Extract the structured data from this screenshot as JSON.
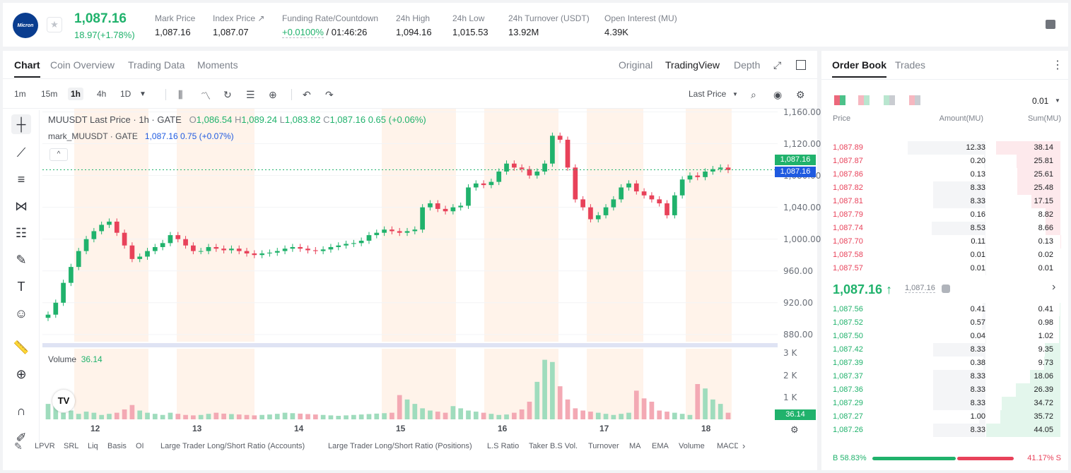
{
  "header": {
    "logo_text": "Micron",
    "last_price": "1,087.16",
    "change": "18.97(+1.78%)",
    "stats": [
      {
        "label": "Mark Price",
        "value": "1,087.16"
      },
      {
        "label": "Index Price ↗",
        "value": "1,087.07"
      },
      {
        "label": "Funding Rate/Countdown",
        "value_a": "+0.0100%",
        "value_b": "/ 01:46:26"
      },
      {
        "label": "24h High",
        "value": "1,094.16"
      },
      {
        "label": "24h Low",
        "value": "1,015.53"
      },
      {
        "label": "24h Turnover (USDT)",
        "value": "13.92M"
      },
      {
        "label": "Open Interest (MU)",
        "value": "4.39K"
      }
    ]
  },
  "chart_tabs": [
    "Chart",
    "Coin Overview",
    "Trading Data",
    "Moments"
  ],
  "view_tabs": [
    "Original",
    "TradingView",
    "Depth"
  ],
  "timeframes": [
    "1m",
    "15m",
    "1h",
    "4h",
    "1D"
  ],
  "price_source": "Last Price",
  "legend": {
    "symbol": "MUUSDT Last Price · 1h · GATE",
    "o_label": "O",
    "o": "1,086.54",
    "h_label": "H",
    "h": "1,089.24",
    "l_label": "L",
    "l": "1,083.82",
    "c_label": "C",
    "c": "1,087.16",
    "chg": "0.65 (+0.06%)",
    "mark_symbol": "mark_MUUSDT · GATE",
    "mark_val": "1,087.16  0.75 (+0.07%)",
    "volume_label": "Volume",
    "volume_val": "36.14"
  },
  "price_tags": {
    "last": "1,087.16",
    "mark": "1,087.16",
    "volume": "36.14"
  },
  "colors": {
    "up": "#20b26c",
    "down": "#e8425a",
    "mark": "#1f5ae0"
  },
  "chart_data": {
    "type": "candlestick",
    "title": "MUUSDT Last Price · 1h · GATE",
    "y_ticks": [
      "1,160.00",
      "1,120.00",
      "1,080.00",
      "1,040.00",
      "1,000.00",
      "960.00",
      "920.00",
      "880.00"
    ],
    "y_tick_values": [
      1160,
      1120,
      1080,
      1040,
      1000,
      960,
      920,
      880
    ],
    "ylim": [
      871,
      1164
    ],
    "x_ticks": [
      "12",
      "13",
      "14",
      "15",
      "16",
      "17",
      "18"
    ],
    "volume_ticks": [
      "3 K",
      "2 K",
      "1 K"
    ],
    "volume_ylim": [
      0,
      3200
    ],
    "closes": [
      905,
      920,
      945,
      965,
      985,
      1000,
      1010,
      1018,
      1022,
      1008,
      992,
      975,
      978,
      985,
      990,
      995,
      1005,
      1000,
      992,
      985,
      985,
      990,
      988,
      986,
      988,
      985,
      982,
      980,
      982,
      983,
      985,
      988,
      990,
      988,
      986,
      985,
      987,
      990,
      992,
      994,
      995,
      998,
      1005,
      1008,
      1012,
      1010,
      1008,
      1010,
      1012,
      1040,
      1045,
      1038,
      1035,
      1040,
      1042,
      1065,
      1070,
      1068,
      1072,
      1085,
      1095,
      1090,
      1088,
      1080,
      1085,
      1095,
      1130,
      1125,
      1090,
      1050,
      1040,
      1025,
      1030,
      1040,
      1050,
      1065,
      1070,
      1060,
      1055,
      1050,
      1045,
      1030,
      1055,
      1075,
      1080,
      1078,
      1085,
      1088,
      1090,
      1087
    ],
    "volumes": [
      700,
      600,
      300,
      400,
      250,
      350,
      300,
      200,
      250,
      300,
      450,
      650,
      400,
      300,
      250,
      200,
      300,
      250,
      200,
      180,
      200,
      250,
      300,
      260,
      240,
      220,
      200,
      180,
      200,
      220,
      250,
      300,
      280,
      260,
      240,
      220,
      200,
      180,
      160,
      180,
      200,
      220,
      240,
      260,
      280,
      300,
      1100,
      900,
      700,
      500,
      400,
      350,
      300,
      600,
      500,
      400,
      350,
      300,
      250,
      200,
      220,
      300,
      450,
      800,
      1700,
      2700,
      2600,
      1500,
      900,
      500,
      400,
      350,
      300,
      250,
      200,
      250,
      300,
      1300,
      950,
      800,
      400,
      350,
      300,
      250,
      200,
      1600,
      1400,
      900,
      700,
      300
    ]
  },
  "indicators": [
    "LPVR",
    "SRL",
    "Liq",
    "Basis",
    "OI",
    "Large Trader Long/Short Ratio (Accounts)",
    "Large Trader Long/Short Ratio (Positions)",
    "L.S Ratio",
    "Taker B.S Vol.",
    "Turnover",
    "MA",
    "EMA",
    "Volume",
    "MACD"
  ],
  "orderbook": {
    "tabs": [
      "Order Book",
      "Trades"
    ],
    "precision": "0.01",
    "headers": {
      "price": "Price",
      "amount": "Amount(MU)",
      "sum": "Sum(MU)"
    },
    "asks": [
      {
        "price": "1,087.89",
        "amount": "12.33",
        "sum": "38.14"
      },
      {
        "price": "1,087.87",
        "amount": "0.20",
        "sum": "25.81"
      },
      {
        "price": "1,087.86",
        "amount": "0.13",
        "sum": "25.61"
      },
      {
        "price": "1,087.82",
        "amount": "8.33",
        "sum": "25.48"
      },
      {
        "price": "1,087.81",
        "amount": "8.33",
        "sum": "17.15"
      },
      {
        "price": "1,087.79",
        "amount": "0.16",
        "sum": "8.82"
      },
      {
        "price": "1,087.74",
        "amount": "8.53",
        "sum": "8.66"
      },
      {
        "price": "1,087.70",
        "amount": "0.11",
        "sum": "0.13"
      },
      {
        "price": "1,087.58",
        "amount": "0.01",
        "sum": "0.02"
      },
      {
        "price": "1,087.57",
        "amount": "0.01",
        "sum": "0.01"
      }
    ],
    "mid_price": "1,087.16 ↑",
    "mid_mark": "1,087.16",
    "bids": [
      {
        "price": "1,087.56",
        "amount": "0.41",
        "sum": "0.41"
      },
      {
        "price": "1,087.52",
        "amount": "0.57",
        "sum": "0.98"
      },
      {
        "price": "1,087.50",
        "amount": "0.04",
        "sum": "1.02"
      },
      {
        "price": "1,087.42",
        "amount": "8.33",
        "sum": "9.35"
      },
      {
        "price": "1,087.39",
        "amount": "0.38",
        "sum": "9.73"
      },
      {
        "price": "1,087.37",
        "amount": "8.33",
        "sum": "18.06"
      },
      {
        "price": "1,087.36",
        "amount": "8.33",
        "sum": "26.39"
      },
      {
        "price": "1,087.29",
        "amount": "8.33",
        "sum": "34.72"
      },
      {
        "price": "1,087.27",
        "amount": "1.00",
        "sum": "35.72"
      },
      {
        "price": "1,087.26",
        "amount": "8.33",
        "sum": "44.05"
      }
    ],
    "max_sum": 44.05,
    "buy_ratio": "B 58.83%",
    "sell_ratio": "41.17% S",
    "buy_fraction": 0.5883
  }
}
